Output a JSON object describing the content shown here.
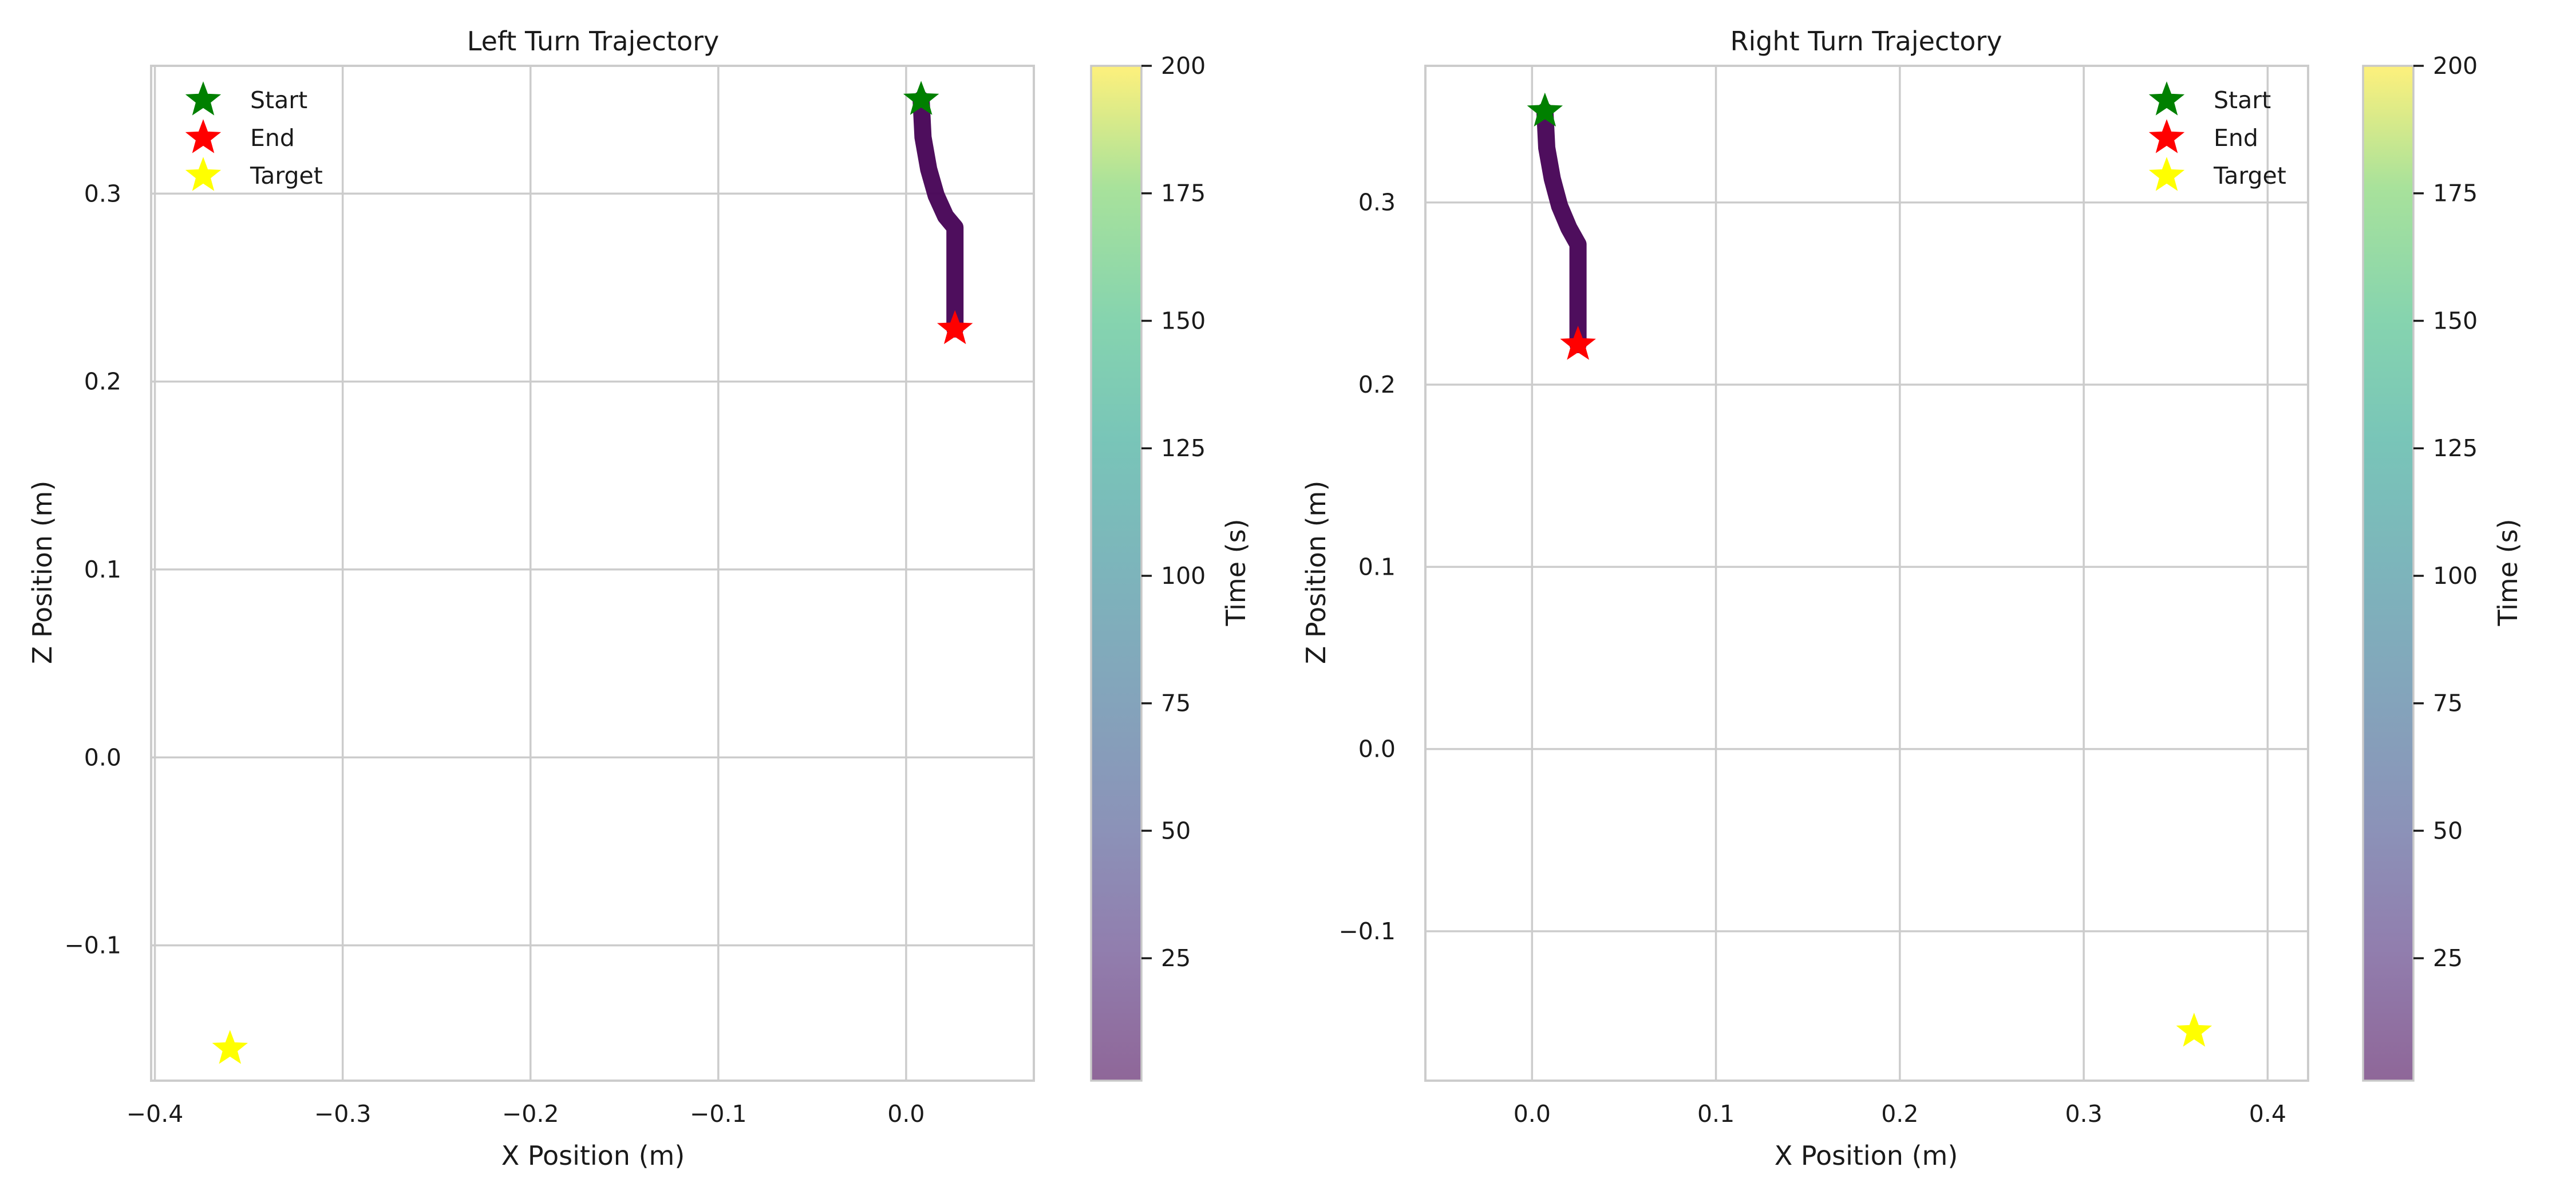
{
  "chart_data": [
    {
      "type": "line",
      "title": "Left Turn Trajectory",
      "xlabel": "X Position (m)",
      "ylabel": "Z Position (m)",
      "xlim": [
        -0.402,
        0.068
      ],
      "ylim": [
        -0.172,
        0.368
      ],
      "xticks": [
        -0.4,
        -0.3,
        -0.2,
        -0.1,
        0.0
      ],
      "xtick_labels": [
        "−0.4",
        "−0.3",
        "−0.2",
        "−0.1",
        "0.0"
      ],
      "yticks": [
        -0.1,
        0.0,
        0.1,
        0.2,
        0.3
      ],
      "ytick_labels": [
        "−0.1",
        "0.0",
        "0.1",
        "0.2",
        "0.3"
      ],
      "grid": true,
      "trajectory": {
        "x": [
          0.008,
          0.009,
          0.012,
          0.016,
          0.021,
          0.026,
          0.026,
          0.026
        ],
        "z": [
          0.35,
          0.33,
          0.313,
          0.299,
          0.288,
          0.282,
          0.255,
          0.228
        ],
        "color": "#440154"
      },
      "markers": [
        {
          "label": "Start",
          "x": 0.008,
          "z": 0.35,
          "color": "#008000"
        },
        {
          "label": "End",
          "x": 0.026,
          "z": 0.228,
          "color": "#ff0000"
        },
        {
          "label": "Target",
          "x": -0.36,
          "z": -0.155,
          "color": "#ffff00"
        }
      ],
      "legend_position": "upper-left",
      "colorbar": {
        "label": "Time (s)",
        "range": [
          1,
          200
        ],
        "ticks": [
          25,
          50,
          75,
          100,
          125,
          150,
          175,
          200
        ],
        "tick_labels": [
          "25",
          "50",
          "75",
          "100",
          "125",
          "150",
          "175",
          "200"
        ],
        "colormap": "viridis"
      }
    },
    {
      "type": "line",
      "title": "Right Turn Trajectory",
      "xlabel": "X Position (m)",
      "ylabel": "Z Position (m)",
      "xlim": [
        -0.058,
        0.422
      ],
      "ylim": [
        -0.182,
        0.375
      ],
      "xticks": [
        0.0,
        0.1,
        0.2,
        0.3,
        0.4
      ],
      "xtick_labels": [
        "0.0",
        "0.1",
        "0.2",
        "0.3",
        "0.4"
      ],
      "yticks": [
        -0.1,
        0.0,
        0.1,
        0.2,
        0.3
      ],
      "ytick_labels": [
        "−0.1",
        "0.0",
        "0.1",
        "0.2",
        "0.3"
      ],
      "grid": true,
      "trajectory": {
        "x": [
          0.007,
          0.008,
          0.011,
          0.015,
          0.02,
          0.025,
          0.025,
          0.025
        ],
        "z": [
          0.35,
          0.33,
          0.313,
          0.298,
          0.286,
          0.277,
          0.25,
          0.222
        ],
        "color": "#440154"
      },
      "markers": [
        {
          "label": "Start",
          "x": 0.007,
          "z": 0.35,
          "color": "#008000"
        },
        {
          "label": "End",
          "x": 0.025,
          "z": 0.222,
          "color": "#ff0000"
        },
        {
          "label": "Target",
          "x": 0.36,
          "z": -0.155,
          "color": "#ffff00"
        }
      ],
      "legend_position": "upper-right",
      "colorbar": {
        "label": "Time (s)",
        "range": [
          1,
          200
        ],
        "ticks": [
          25,
          50,
          75,
          100,
          125,
          150,
          175,
          200
        ],
        "tick_labels": [
          "25",
          "50",
          "75",
          "100",
          "125",
          "150",
          "175",
          "200"
        ],
        "colormap": "viridis"
      }
    }
  ]
}
